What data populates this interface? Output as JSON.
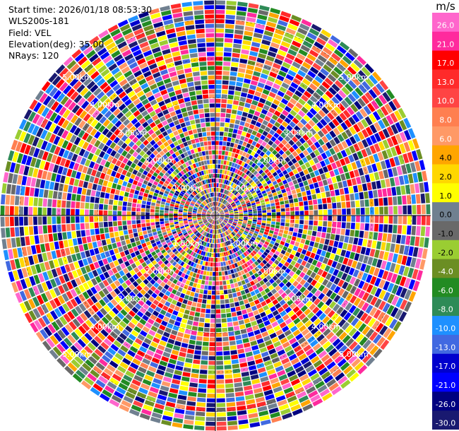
{
  "header": {
    "start_time": "Start time: 2026/01/18 08:53:30",
    "instrument": "WLS200s-181",
    "field": "Field: VEL",
    "elevation": "Elevation(deg): 35.00",
    "nrays": "NRays: 120"
  },
  "chart_data": {
    "type": "heatmap",
    "projection": "polar-ppi",
    "field": "VEL",
    "n_rays": 120,
    "max_range_km": 5.5,
    "range_ring_labels": [
      "1.00km",
      "2.00km",
      "3.00km",
      "4.00km",
      "5.00km"
    ],
    "range_rings_km": [
      1,
      2,
      3,
      4,
      5
    ],
    "colorbar": {
      "unit": "m/s",
      "tick_labels": [
        "26.0",
        "21.0",
        "17.0",
        "13.0",
        "10.0",
        "8.0",
        "6.0",
        "4.0",
        "2.0",
        "1.0",
        "0.0",
        "-1.0",
        "-2.0",
        "-4.0",
        "-6.0",
        "-8.0",
        "-10.0",
        "-13.0",
        "-17.0",
        "-21.0",
        "-26.0",
        "-30.0"
      ],
      "colors": [
        "#ff66cc",
        "#ff2a9d",
        "#ff0000",
        "#ff2a2a",
        "#ff4444",
        "#ff7f50",
        "#ff9966",
        "#ffa500",
        "#ffd700",
        "#ffff00",
        "#708090",
        "#696969",
        "#9acd32",
        "#6b8e23",
        "#228b22",
        "#2e8b57",
        "#1e90ff",
        "#4169e1",
        "#0000cd",
        "#0000ff",
        "#000080",
        "#191970"
      ]
    },
    "grid": true
  }
}
